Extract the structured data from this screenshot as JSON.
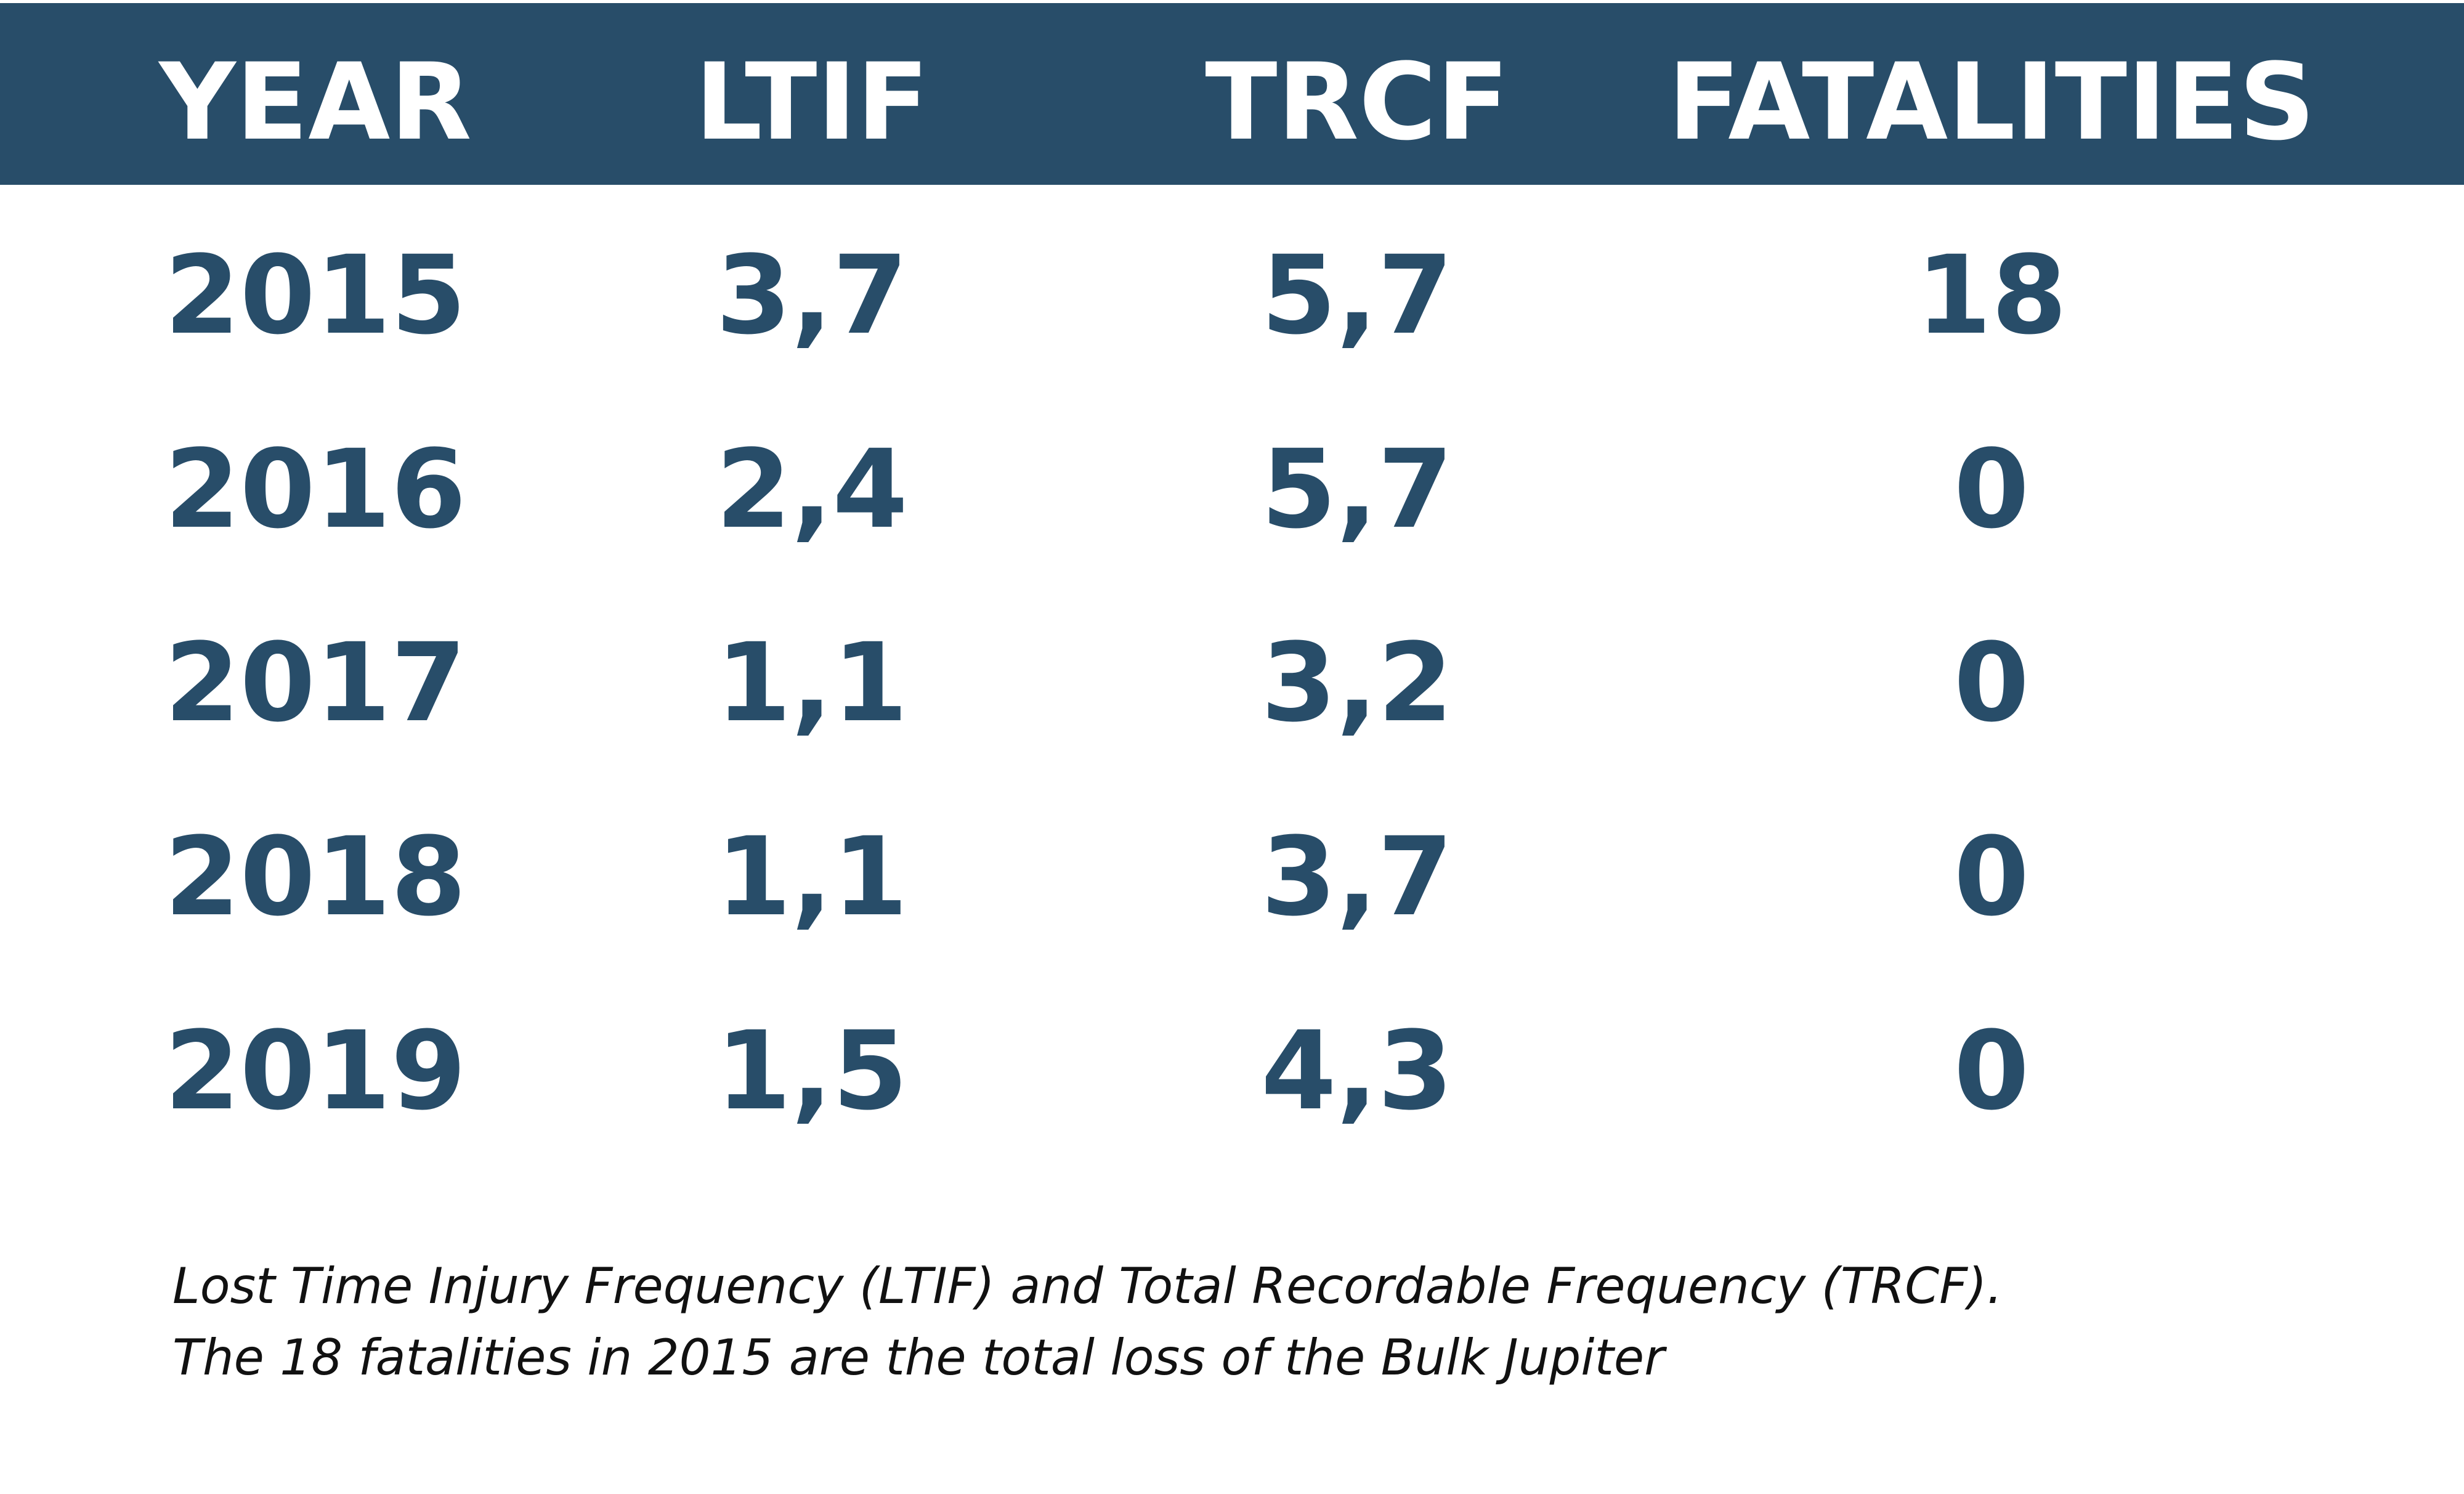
{
  "chart_data": {
    "type": "table",
    "columns": [
      "YEAR",
      "LTIF",
      "TRCF",
      "FATALITIES"
    ],
    "rows": [
      [
        "2015",
        "3,7",
        "5,7",
        "18"
      ],
      [
        "2016",
        "2,4",
        "5,7",
        "0"
      ],
      [
        "2017",
        "1,1",
        "3,2",
        "0"
      ],
      [
        "2018",
        "1,1",
        "3,7",
        "0"
      ],
      [
        "2019",
        "1,5",
        "4,3",
        "0"
      ]
    ],
    "caption": [
      "Lost Time Injury Frequency (LTIF) and Total Recordable Frequency (TRCF).",
      "The 18 fatalities in 2015 are the total loss of the Bulk Jupiter"
    ]
  },
  "colors": {
    "header_background": "#284d69",
    "header_text": "#ffffff",
    "cell_text": "#284d69"
  }
}
